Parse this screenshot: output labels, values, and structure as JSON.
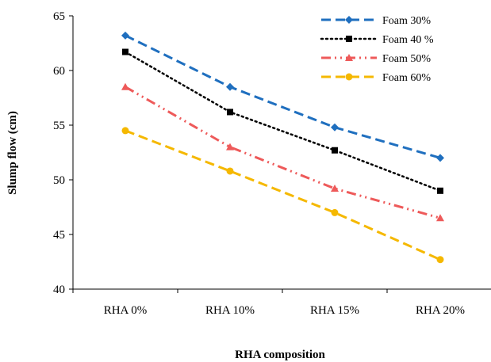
{
  "chart_data": {
    "type": "line",
    "title": "",
    "xlabel": "RHA composition",
    "ylabel": "Slump flow (cm)",
    "categories": [
      "RHA 0%",
      "RHA 10%",
      "RHA 15%",
      "RHA 20%"
    ],
    "ylim": [
      40,
      65
    ],
    "yticks": [
      "40",
      "45",
      "50",
      "55",
      "60",
      "65"
    ],
    "grid": false,
    "legend_position": "top-right",
    "series": [
      {
        "name": "Foam 30%",
        "values": [
          63.2,
          58.5,
          54.8,
          52.0
        ],
        "color": "#1f6fbf",
        "marker": "diamond",
        "dash": "long-dash"
      },
      {
        "name": "Foam 40 %",
        "values": [
          61.7,
          56.2,
          52.7,
          49.0
        ],
        "color": "#000000",
        "marker": "square",
        "dash": "dot"
      },
      {
        "name": "Foam 50%",
        "values": [
          58.5,
          53.0,
          49.2,
          46.5
        ],
        "color": "#ee5a5a",
        "marker": "triangle",
        "dash": "dash-dot-dot"
      },
      {
        "name": "Foam 60%",
        "values": [
          54.5,
          50.8,
          47.0,
          42.7
        ],
        "color": "#f5b800",
        "marker": "circle",
        "dash": "long-dash"
      }
    ]
  }
}
